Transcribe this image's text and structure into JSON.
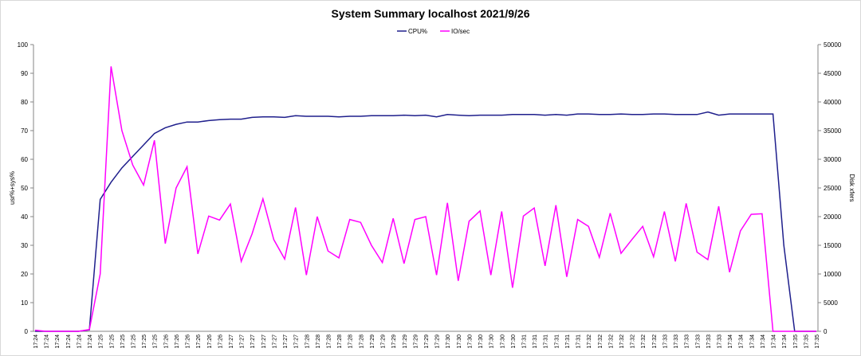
{
  "chart_data": {
    "type": "line",
    "title": "System Summary localhost  2021/9/26",
    "y_label": "usr%+sys%",
    "y2_label": "Disk xfers",
    "categories": [
      "17:24",
      "17:24",
      "17:24",
      "17:24",
      "17:24",
      "17:24",
      "17:25",
      "17:25",
      "17:25",
      "17:25",
      "17:25",
      "17:25",
      "17:26",
      "17:26",
      "17:26",
      "17:26",
      "17:26",
      "17:26",
      "17:27",
      "17:27",
      "17:27",
      "17:27",
      "17:27",
      "17:27",
      "17:27",
      "17:28",
      "17:28",
      "17:28",
      "17:28",
      "17:28",
      "17:28",
      "17:29",
      "17:29",
      "17:29",
      "17:29",
      "17:29",
      "17:29",
      "17:29",
      "17:30",
      "17:30",
      "17:30",
      "17:30",
      "17:30",
      "17:30",
      "17:30",
      "17:31",
      "17:31",
      "17:31",
      "17:31",
      "17:31",
      "17:31",
      "17:32",
      "17:32",
      "17:32",
      "17:32",
      "17:32",
      "17:32",
      "17:32",
      "17:33",
      "17:33",
      "17:33",
      "17:33",
      "17:33",
      "17:33",
      "17:34",
      "17:34",
      "17:34",
      "17:34",
      "17:34",
      "17:34",
      "17:35",
      "17:35",
      "17:35"
    ],
    "series": [
      {
        "name": "CPU%",
        "color": "#1f1f8c",
        "values": [
          0,
          0,
          0,
          0,
          0,
          0.5,
          46,
          52,
          57,
          61,
          65,
          69,
          71,
          72.2,
          73,
          73,
          73.5,
          73.8,
          74,
          74,
          74.6,
          74.8,
          74.8,
          74.6,
          75.2,
          75,
          75,
          75,
          74.8,
          75,
          75,
          75.2,
          75.2,
          75.2,
          75.4,
          75.2,
          75.4,
          74.8,
          75.6,
          75.4,
          75.2,
          75.4,
          75.4,
          75.4,
          75.6,
          75.6,
          75.6,
          75.4,
          75.6,
          75.4,
          75.8,
          75.8,
          75.6,
          75.6,
          75.8,
          75.6,
          75.6,
          75.8,
          75.8,
          75.6,
          75.6,
          75.6,
          76.5,
          75.4,
          75.8,
          75.8,
          75.8,
          75.8,
          75.8,
          30,
          0,
          0,
          0
        ]
      },
      {
        "name": "IO/sec",
        "color": "#ff00ff",
        "axis": "y2",
        "values": [
          200,
          0,
          0,
          0,
          0,
          300,
          10000,
          46200,
          35000,
          29000,
          25500,
          33300,
          15300,
          25000,
          28700,
          13500,
          20100,
          19400,
          22200,
          12200,
          17000,
          23100,
          16000,
          12600,
          21600,
          9800,
          20000,
          14000,
          12800,
          19500,
          19000,
          15000,
          12000,
          19700,
          11800,
          19500,
          20000,
          9800,
          22400,
          8800,
          19200,
          21000,
          9800,
          20900,
          7600,
          20100,
          21500,
          11400,
          22000,
          9500,
          19500,
          18300,
          12900,
          20600,
          13600,
          16000,
          18300,
          13000,
          20900,
          12200,
          22300,
          13800,
          12500,
          21800,
          10300,
          17500,
          20400,
          20500,
          0,
          0,
          0,
          0,
          0
        ]
      }
    ],
    "ylim": [
      0,
      100
    ],
    "yticks": [
      0,
      10,
      20,
      30,
      40,
      50,
      60,
      70,
      80,
      90,
      100
    ],
    "y2lim": [
      0,
      50000
    ],
    "y2ticks": [
      0,
      5000,
      10000,
      15000,
      20000,
      25000,
      30000,
      35000,
      40000,
      45000,
      50000
    ],
    "grid": false,
    "legend": "top"
  }
}
